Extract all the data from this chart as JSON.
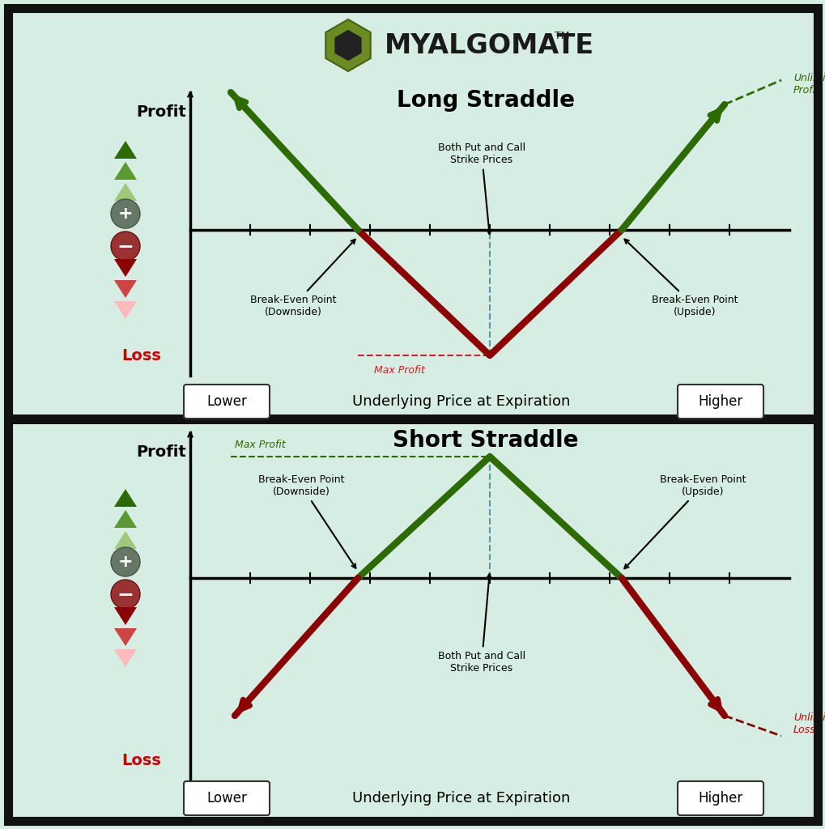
{
  "bg_color": "#d5ede3",
  "border_color": "#111111",
  "dark_green": "#2d6a00",
  "dark_red": "#8b0000",
  "red_label": "#cc0000",
  "axis_color": "#111111",
  "title_long": "Long Straddle",
  "title_short": "Short Straddle",
  "xlabel": "Underlying Price at Expiration",
  "profit_label": "Profit",
  "loss_label": "Loss",
  "lower_label": "Lower",
  "higher_label": "Higher",
  "unlimited_profit": "Unlimited\nProfit",
  "unlimited_loss": "Unlimited\nLoss",
  "max_profit_long": "Max Profit",
  "max_profit_short": "Max Profit",
  "break_down": "Break-Even Point\n(Downside)",
  "break_up": "Break-Even Point\n(Upside)",
  "strike_label": "Both Put and Call\nStrike Prices",
  "logo_text": "MYALGOMATE",
  "green_tri_colors": [
    "#2d6a00",
    "#5a9a30",
    "#9ec87a"
  ],
  "red_tri_colors": [
    "#ffbbbb",
    "#cc4444",
    "#8b0000"
  ],
  "plus_circle_color": "#667766",
  "minus_circle_color": "#993333"
}
